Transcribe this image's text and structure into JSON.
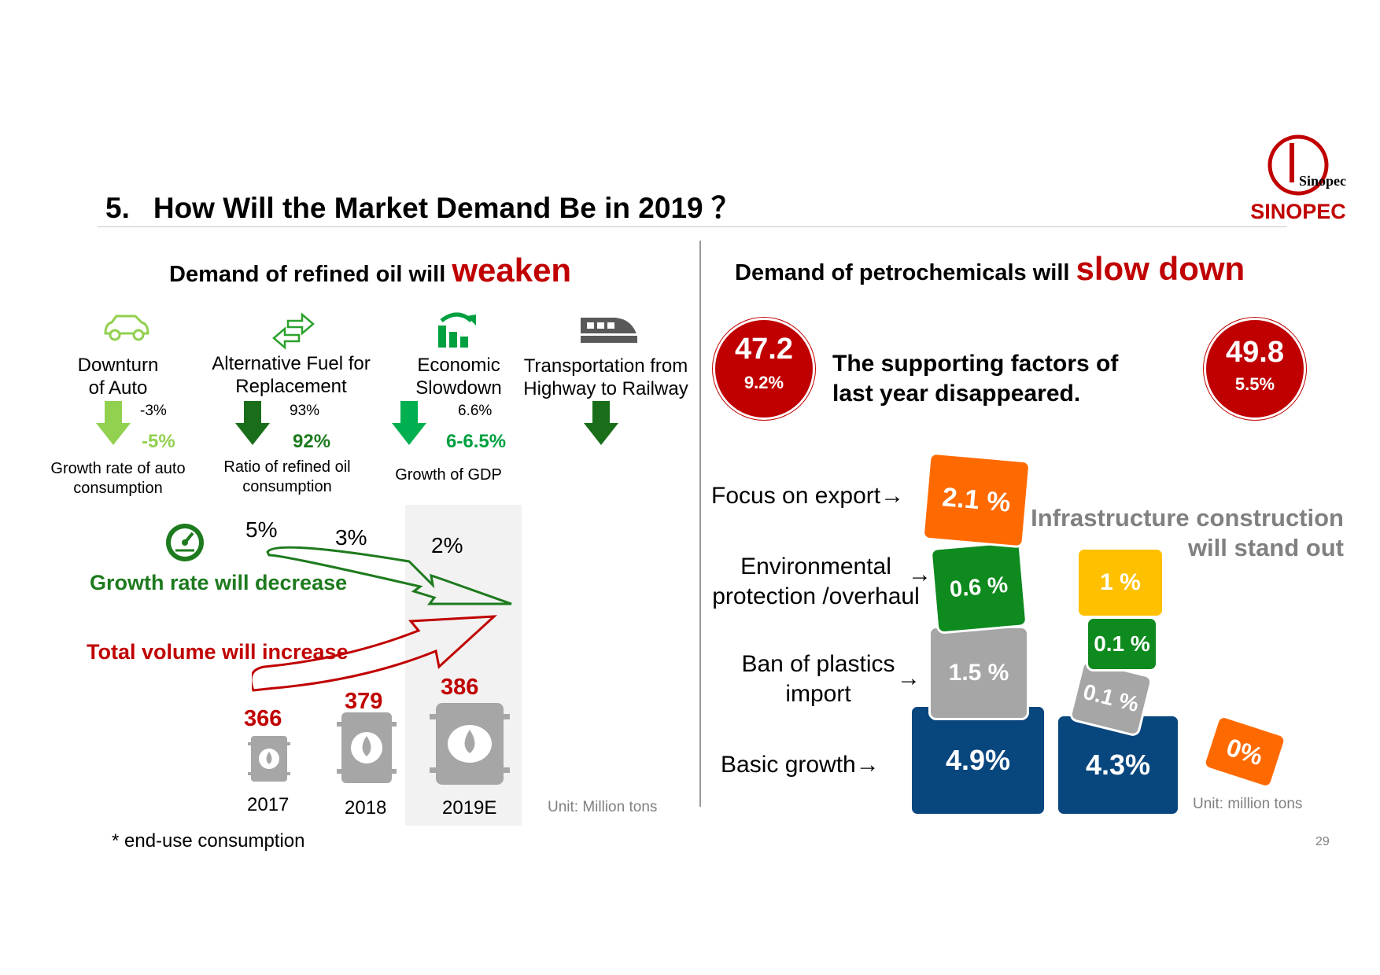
{
  "title": {
    "number": "5.",
    "text": "How Will the Market Demand Be in 2019 ？"
  },
  "logo": {
    "brand": "SINOPEC",
    "glyph_text": "Sinopec"
  },
  "left": {
    "heading": {
      "prefix": "Demand of refined oil will",
      "emph": "weaken"
    },
    "factors": [
      {
        "icon": "car-icon",
        "label_line1": "Downturn",
        "label_line2": "of Auto",
        "prev": "-3%",
        "forecast": "-5%",
        "metric_line1": "Growth rate of auto",
        "metric_line2": "consumption"
      },
      {
        "icon": "swap-arrows-icon",
        "label_line1": "Alternative Fuel for",
        "label_line2": "Replacement",
        "prev": "93%",
        "forecast": "92%",
        "metric_line1": "Ratio of refined oil",
        "metric_line2": "consumption"
      },
      {
        "icon": "growth-chart-icon",
        "label_line1": "Economic",
        "label_line2": "Slowdown",
        "prev": "6.6%",
        "forecast": "6-6.5%",
        "metric_line1": "Growth of GDP",
        "metric_line2": ""
      },
      {
        "icon": "train-icon",
        "label_line1": "Transportation from",
        "label_line2": "Highway to Railway",
        "prev": "",
        "forecast": "",
        "metric_line1": "",
        "metric_line2": ""
      }
    ],
    "growth_rates": [
      "5%",
      "3%",
      "2%"
    ],
    "growth_label": "Growth rate will decrease",
    "volume_label": "Total volume will increase",
    "volumes": [
      {
        "year": "2017",
        "value": "366"
      },
      {
        "year": "2018",
        "value": "379"
      },
      {
        "year": "2019E",
        "value": "386"
      }
    ],
    "unit": "Unit: Million tons",
    "footnote": "* end-use consumption"
  },
  "right": {
    "heading": {
      "prefix": "Demand of petrochemicals will",
      "emph": "slow down"
    },
    "circle_2018": {
      "value": "47.2",
      "pct": "9.2%"
    },
    "circle_2019": {
      "value": "49.8",
      "pct": "5.5%"
    },
    "support_line1": "The supporting factors of",
    "support_line2": "last year disappeared.",
    "row_labels": {
      "export": "Focus on export→",
      "env_line1": "Environmental",
      "env_line2": "protection /overhaul",
      "env_arrow": "→",
      "ban_line1": "Ban of plastics",
      "ban_line2": "import",
      "ban_arrow": "→",
      "basic": "Basic growth→"
    },
    "stack_2018": {
      "export": "2.1 %",
      "env": "0.6 %",
      "ban": "1.5 %",
      "basic": "4.9%"
    },
    "stack_2019": {
      "infra": "1 %",
      "env": "0.1 %",
      "ban": "0.1 %",
      "basic": "4.3%",
      "export": "0%"
    },
    "infra_line1": "Infrastructure construction",
    "infra_line2": "will stand out",
    "unit": "Unit: million tons"
  },
  "page_number": "29",
  "colors": {
    "red": "#c00000",
    "green": "#1e7a1e",
    "navy": "#08467e",
    "orange": "#ff6a00",
    "yellow": "#ffc000"
  }
}
